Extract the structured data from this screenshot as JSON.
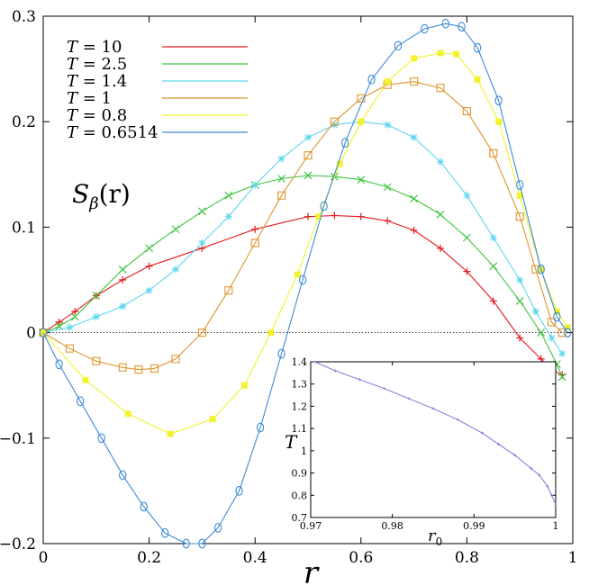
{
  "chart_data": {
    "type": "line",
    "title": "",
    "xlabel": "r",
    "ylabel": "S_β(r)",
    "xlim": [
      0,
      1
    ],
    "ylim": [
      -0.2,
      0.3
    ],
    "x_ticks": [
      "0",
      "0.2",
      "0.4",
      "0.6",
      "0.8",
      "1"
    ],
    "y_ticks": [
      "−0.2",
      "−0.1",
      "0",
      "0.1",
      "0.2",
      "0.3"
    ],
    "reference_line": 0,
    "curve_label": {
      "main": "S",
      "sub": "β",
      "arg": "(r)"
    },
    "series": [
      {
        "name": "T = 10",
        "prefix": "T",
        "eq": " = ",
        "value": "10",
        "color": "#e31a1c",
        "marker": "plus",
        "x": [
          0,
          0.03,
          0.06,
          0.1,
          0.15,
          0.2,
          0.3,
          0.4,
          0.5,
          0.55,
          0.6,
          0.65,
          0.7,
          0.75,
          0.8,
          0.85,
          0.9,
          0.94,
          0.96,
          0.98
        ],
        "y": [
          0,
          0.01,
          0.02,
          0.035,
          0.05,
          0.063,
          0.08,
          0.098,
          0.11,
          0.111,
          0.11,
          0.106,
          0.097,
          0.08,
          0.058,
          0.03,
          -0.005,
          -0.025,
          -0.035,
          -0.04
        ]
      },
      {
        "name": "T = 2.5",
        "prefix": "T",
        "eq": " = ",
        "value": "2.5",
        "color": "#3cc43c",
        "marker": "x",
        "x": [
          0,
          0.03,
          0.06,
          0.1,
          0.15,
          0.2,
          0.25,
          0.3,
          0.35,
          0.4,
          0.45,
          0.5,
          0.55,
          0.6,
          0.65,
          0.7,
          0.75,
          0.8,
          0.85,
          0.9,
          0.94,
          0.97,
          0.98
        ],
        "y": [
          0,
          0.006,
          0.015,
          0.035,
          0.06,
          0.08,
          0.098,
          0.115,
          0.13,
          0.14,
          0.146,
          0.149,
          0.148,
          0.145,
          0.138,
          0.127,
          0.112,
          0.09,
          0.063,
          0.03,
          0.0,
          -0.03,
          -0.042
        ]
      },
      {
        "name": "T = 1.4",
        "prefix": "T",
        "eq": " = ",
        "value": "1.4",
        "color": "#5fd6ee",
        "marker": "star",
        "x": [
          0,
          0.05,
          0.1,
          0.15,
          0.2,
          0.25,
          0.3,
          0.35,
          0.4,
          0.45,
          0.5,
          0.55,
          0.6,
          0.65,
          0.7,
          0.75,
          0.8,
          0.85,
          0.9,
          0.93,
          0.96,
          0.98
        ],
        "y": [
          0,
          0.005,
          0.015,
          0.025,
          0.04,
          0.06,
          0.085,
          0.11,
          0.14,
          0.165,
          0.185,
          0.197,
          0.2,
          0.197,
          0.185,
          0.162,
          0.13,
          0.09,
          0.05,
          0.02,
          -0.005,
          -0.02
        ]
      },
      {
        "name": "T = 1",
        "prefix": "T",
        "eq": " = ",
        "value": "1",
        "color": "#e0952e",
        "marker": "square-open",
        "x": [
          0,
          0.05,
          0.1,
          0.15,
          0.18,
          0.21,
          0.25,
          0.3,
          0.35,
          0.4,
          0.45,
          0.5,
          0.55,
          0.6,
          0.65,
          0.7,
          0.75,
          0.8,
          0.85,
          0.9,
          0.93,
          0.96,
          0.98
        ],
        "y": [
          0,
          -0.015,
          -0.027,
          -0.033,
          -0.035,
          -0.034,
          -0.025,
          0.0,
          0.04,
          0.085,
          0.13,
          0.168,
          0.2,
          0.222,
          0.235,
          0.238,
          0.232,
          0.21,
          0.17,
          0.11,
          0.06,
          0.01,
          0.0
        ]
      },
      {
        "name": "T = 0.8",
        "prefix": "T",
        "eq": " = ",
        "value": "0.8",
        "color": "#f2f230",
        "marker": "square-filled",
        "x": [
          0,
          0.08,
          0.16,
          0.24,
          0.32,
          0.38,
          0.43,
          0.48,
          0.52,
          0.56,
          0.6,
          0.65,
          0.7,
          0.75,
          0.78,
          0.82,
          0.86,
          0.9,
          0.94,
          0.97,
          0.99
        ],
        "y": [
          0,
          -0.045,
          -0.077,
          -0.096,
          -0.082,
          -0.05,
          0.0,
          0.055,
          0.11,
          0.16,
          0.2,
          0.238,
          0.26,
          0.265,
          0.264,
          0.24,
          0.2,
          0.13,
          0.06,
          0.02,
          0.005
        ]
      },
      {
        "name": "T = 0.6514",
        "prefix": "T",
        "eq": " = ",
        "value": "0.6514",
        "color": "#3d8bd6",
        "marker": "circle-open",
        "x": [
          0,
          0.03,
          0.07,
          0.11,
          0.15,
          0.19,
          0.23,
          0.27,
          0.3,
          0.33,
          0.37,
          0.41,
          0.45,
          0.49,
          0.53,
          0.57,
          0.62,
          0.67,
          0.72,
          0.76,
          0.79,
          0.82,
          0.86,
          0.9,
          0.94,
          0.97,
          0.99
        ],
        "y": [
          0,
          -0.03,
          -0.065,
          -0.1,
          -0.135,
          -0.165,
          -0.19,
          -0.2,
          -0.2,
          -0.185,
          -0.15,
          -0.09,
          -0.02,
          0.05,
          0.12,
          0.18,
          0.24,
          0.272,
          0.288,
          0.293,
          0.29,
          0.27,
          0.22,
          0.14,
          0.06,
          0.015,
          0.0
        ]
      }
    ],
    "inset": {
      "type": "line",
      "xlabel": "r",
      "xlabel_sub": "0",
      "ylabel": "T",
      "xlim": [
        0.97,
        1.0
      ],
      "ylim": [
        0.7,
        1.4
      ],
      "x_ticks": [
        "0.97",
        "0.98",
        "0.99",
        "1"
      ],
      "y_ticks": [
        "0.7",
        "0.8",
        "0.9",
        "1",
        "1.1",
        "1.2",
        "1.3",
        "1.4"
      ],
      "color": "#7777dd",
      "x": [
        0.9705,
        0.973,
        0.976,
        0.979,
        0.982,
        0.985,
        0.988,
        0.991,
        0.993,
        0.995,
        0.997,
        0.998,
        0.999,
        0.9995,
        1.0
      ],
      "y": [
        1.4,
        1.36,
        1.32,
        1.28,
        1.235,
        1.19,
        1.14,
        1.08,
        1.03,
        0.98,
        0.92,
        0.89,
        0.84,
        0.8,
        0.76
      ]
    }
  }
}
